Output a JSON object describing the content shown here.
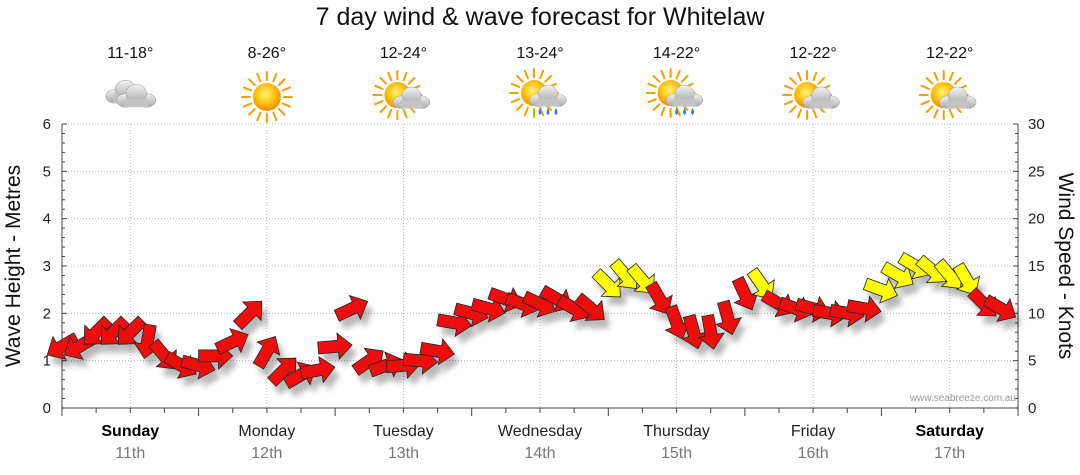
{
  "title": "7 day wind & wave forecast for Whitelaw",
  "watermark": "www.seabreeze.com.au",
  "colors": {
    "wind_low": "#ee1111",
    "wind_mid": "#ffff00",
    "stroke": "#222222",
    "grid": "#aaaaaa"
  },
  "days": [
    {
      "name": "Sunday",
      "date": "11th",
      "bold": true,
      "temp": "11-18°",
      "icon": "cloudy-icon"
    },
    {
      "name": "Monday",
      "date": "12th",
      "bold": false,
      "temp": "8-26°",
      "icon": "sunny-icon"
    },
    {
      "name": "Tuesday",
      "date": "13th",
      "bold": false,
      "temp": "12-24°",
      "icon": "partly-cloudy-icon"
    },
    {
      "name": "Wednesday",
      "date": "14th",
      "bold": false,
      "temp": "13-24°",
      "icon": "sun-showers-icon"
    },
    {
      "name": "Thursday",
      "date": "15th",
      "bold": false,
      "temp": "14-22°",
      "icon": "sun-showers-icon"
    },
    {
      "name": "Friday",
      "date": "16th",
      "bold": false,
      "temp": "12-22°",
      "icon": "partly-cloudy-icon"
    },
    {
      "name": "Saturday",
      "date": "17th",
      "bold": true,
      "temp": "12-22°",
      "icon": "partly-cloudy-icon"
    }
  ],
  "chart_data": {
    "type": "line",
    "title": "7 day wind & wave forecast for Whitelaw",
    "ylabel_left": "Wave Height - Metres",
    "ylabel_right": "Wind Speed - Knots",
    "ylim_left": [
      0,
      6
    ],
    "ylim_right": [
      0,
      30
    ],
    "yticks_left": [
      "0",
      "1",
      "2",
      "3",
      "4",
      "5",
      "6"
    ],
    "yticks_right": [
      "0",
      "5",
      "10",
      "15",
      "20",
      "25",
      "30"
    ],
    "x_unit": "hours from start of Sunday",
    "wind_speed_color_threshold_knots": 12.5,
    "series": [
      {
        "name": "Wind speed (knots) with direction arrows",
        "x": [
          0,
          3,
          6,
          9,
          12,
          15,
          18,
          21,
          24,
          27,
          30,
          33,
          36,
          39,
          42,
          45,
          48,
          51,
          54,
          57,
          60,
          63,
          66,
          69,
          72,
          75,
          78,
          81,
          84,
          87,
          90,
          93,
          96,
          99,
          102,
          105,
          108,
          111,
          114,
          117,
          120,
          123,
          126,
          129,
          132,
          135,
          138,
          141,
          144,
          147,
          150,
          153,
          156,
          159,
          162,
          165
        ],
        "speed": [
          6.5,
          6.5,
          8,
          8,
          8,
          7,
          5.5,
          4.5,
          4.5,
          5.5,
          7,
          10,
          6,
          4,
          3.5,
          4,
          6.5,
          10.5,
          5,
          4.5,
          4.5,
          5,
          6,
          9,
          10,
          10.5,
          11.5,
          11,
          11,
          11.5,
          10.5,
          10.5,
          13,
          14,
          13.5,
          11.5,
          9,
          8,
          8,
          9.5,
          12,
          13,
          11,
          10.5,
          10.5,
          10,
          10,
          10.5,
          12.5,
          14,
          15,
          14.5,
          14,
          13.5,
          11,
          10.5
        ],
        "direction_deg": [
          60,
          60,
          45,
          45,
          45,
          10,
          320,
          300,
          285,
          270,
          245,
          225,
          210,
          225,
          240,
          260,
          265,
          245,
          235,
          250,
          265,
          275,
          280,
          280,
          285,
          285,
          290,
          290,
          295,
          300,
          300,
          310,
          315,
          320,
          320,
          330,
          340,
          345,
          350,
          345,
          335,
          325,
          300,
          290,
          285,
          280,
          280,
          280,
          290,
          300,
          300,
          310,
          320,
          330,
          315,
          300
        ]
      }
    ]
  }
}
